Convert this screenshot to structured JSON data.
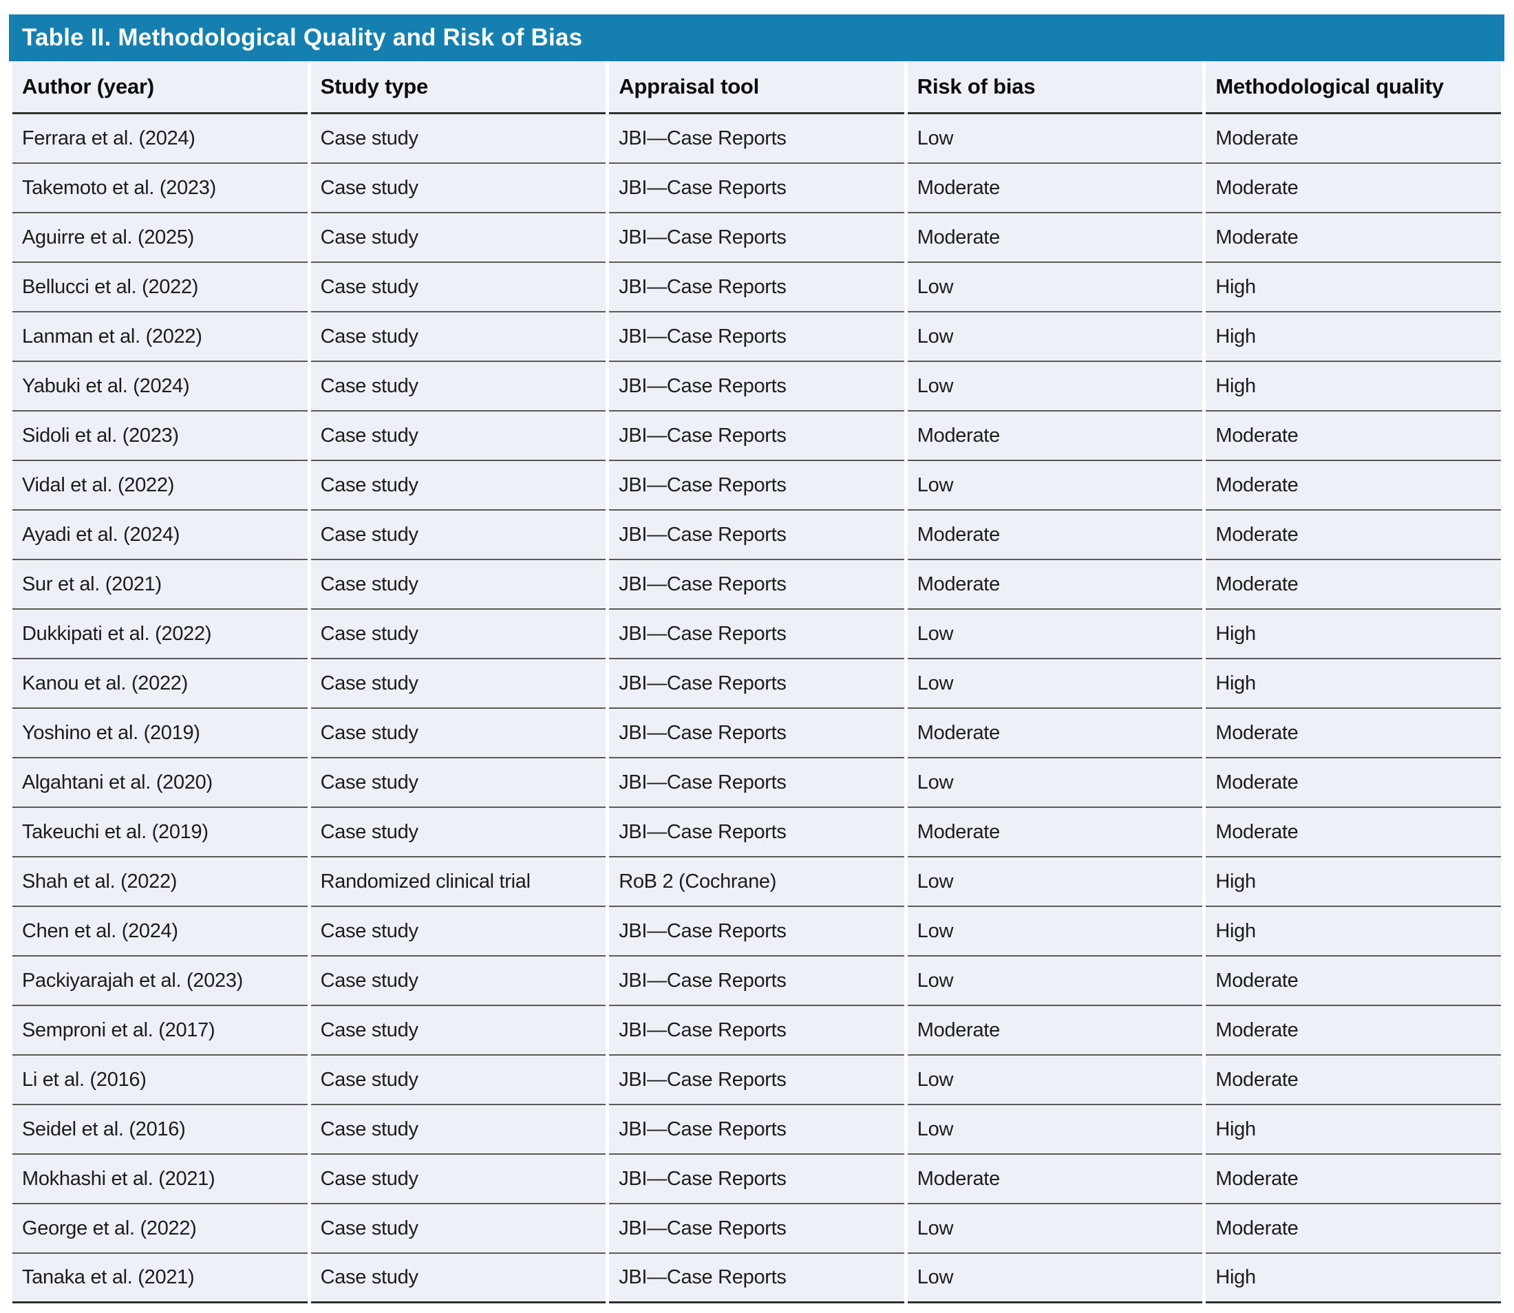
{
  "table": {
    "title": "Table II. Methodological Quality and Risk of Bias",
    "columns": [
      "Author (year)",
      "Study type",
      "Appraisal tool",
      "Risk of bias",
      "Methodological quality"
    ],
    "rows": [
      {
        "author": "Ferrara et al. (2024)",
        "study_type": "Case study",
        "appraisal_tool": "JBI—Case Reports",
        "risk_of_bias": "Low",
        "methodological_quality": "Moderate"
      },
      {
        "author": "Takemoto et al. (2023)",
        "study_type": "Case study",
        "appraisal_tool": "JBI—Case Reports",
        "risk_of_bias": "Moderate",
        "methodological_quality": "Moderate"
      },
      {
        "author": "Aguirre et al. (2025)",
        "study_type": "Case study",
        "appraisal_tool": "JBI—Case Reports",
        "risk_of_bias": "Moderate",
        "methodological_quality": "Moderate"
      },
      {
        "author": "Bellucci et al. (2022)",
        "study_type": "Case study",
        "appraisal_tool": "JBI—Case Reports",
        "risk_of_bias": "Low",
        "methodological_quality": "High"
      },
      {
        "author": "Lanman et al. (2022)",
        "study_type": "Case study",
        "appraisal_tool": "JBI—Case Reports",
        "risk_of_bias": "Low",
        "methodological_quality": "High"
      },
      {
        "author": "Yabuki et al. (2024)",
        "study_type": "Case study",
        "appraisal_tool": "JBI—Case Reports",
        "risk_of_bias": "Low",
        "methodological_quality": "High"
      },
      {
        "author": "Sidoli et al. (2023)",
        "study_type": "Case study",
        "appraisal_tool": "JBI—Case Reports",
        "risk_of_bias": "Moderate",
        "methodological_quality": "Moderate"
      },
      {
        "author": "Vidal et al. (2022)",
        "study_type": "Case study",
        "appraisal_tool": "JBI—Case Reports",
        "risk_of_bias": "Low",
        "methodological_quality": "Moderate"
      },
      {
        "author": "Ayadi et al. (2024)",
        "study_type": "Case study",
        "appraisal_tool": "JBI—Case Reports",
        "risk_of_bias": "Moderate",
        "methodological_quality": "Moderate"
      },
      {
        "author": "Sur et al. (2021)",
        "study_type": "Case study",
        "appraisal_tool": "JBI—Case Reports",
        "risk_of_bias": "Moderate",
        "methodological_quality": "Moderate"
      },
      {
        "author": "Dukkipati et al. (2022)",
        "study_type": "Case study",
        "appraisal_tool": "JBI—Case Reports",
        "risk_of_bias": "Low",
        "methodological_quality": "High"
      },
      {
        "author": "Kanou et al. (2022)",
        "study_type": "Case study",
        "appraisal_tool": "JBI—Case Reports",
        "risk_of_bias": "Low",
        "methodological_quality": "High"
      },
      {
        "author": "Yoshino et al. (2019)",
        "study_type": "Case study",
        "appraisal_tool": "JBI—Case Reports",
        "risk_of_bias": "Moderate",
        "methodological_quality": "Moderate"
      },
      {
        "author": "Algahtani et al. (2020)",
        "study_type": "Case study",
        "appraisal_tool": "JBI—Case Reports",
        "risk_of_bias": "Low",
        "methodological_quality": "Moderate"
      },
      {
        "author": "Takeuchi et al. (2019)",
        "study_type": "Case study",
        "appraisal_tool": "JBI—Case Reports",
        "risk_of_bias": "Moderate",
        "methodological_quality": "Moderate"
      },
      {
        "author": "Shah et al. (2022)",
        "study_type": "Randomized clinical trial",
        "appraisal_tool": "RoB 2 (Cochrane)",
        "risk_of_bias": "Low",
        "methodological_quality": "High"
      },
      {
        "author": "Chen et al. (2024)",
        "study_type": "Case study",
        "appraisal_tool": "JBI—Case Reports",
        "risk_of_bias": "Low",
        "methodological_quality": "High"
      },
      {
        "author": "Packiyarajah et al. (2023)",
        "study_type": "Case study",
        "appraisal_tool": "JBI—Case Reports",
        "risk_of_bias": "Low",
        "methodological_quality": "Moderate"
      },
      {
        "author": "Semproni et al. (2017)",
        "study_type": "Case study",
        "appraisal_tool": "JBI—Case Reports",
        "risk_of_bias": "Moderate",
        "methodological_quality": "Moderate"
      },
      {
        "author": "Li et al. (2016)",
        "study_type": "Case study",
        "appraisal_tool": "JBI—Case Reports",
        "risk_of_bias": "Low",
        "methodological_quality": "Moderate"
      },
      {
        "author": "Seidel et al. (2016)",
        "study_type": "Case study",
        "appraisal_tool": "JBI—Case Reports",
        "risk_of_bias": "Low",
        "methodological_quality": "High"
      },
      {
        "author": "Mokhashi et al. (2021)",
        "study_type": "Case study",
        "appraisal_tool": "JBI—Case Reports",
        "risk_of_bias": "Moderate",
        "methodological_quality": "Moderate"
      },
      {
        "author": "George et al. (2022)",
        "study_type": "Case study",
        "appraisal_tool": "JBI—Case Reports",
        "risk_of_bias": "Low",
        "methodological_quality": "Moderate"
      },
      {
        "author": "Tanaka et al. (2021)",
        "study_type": "Case study",
        "appraisal_tool": "JBI—Case Reports",
        "risk_of_bias": "Low",
        "methodological_quality": "High"
      }
    ]
  },
  "colors": {
    "title_bar_background": "#1580AF",
    "title_text": "#FFFFFF",
    "row_background": "#EDF0F7",
    "row_rule": "#585858",
    "header_rule": "#2F2F2F",
    "body_text": "#1C1C1C"
  }
}
